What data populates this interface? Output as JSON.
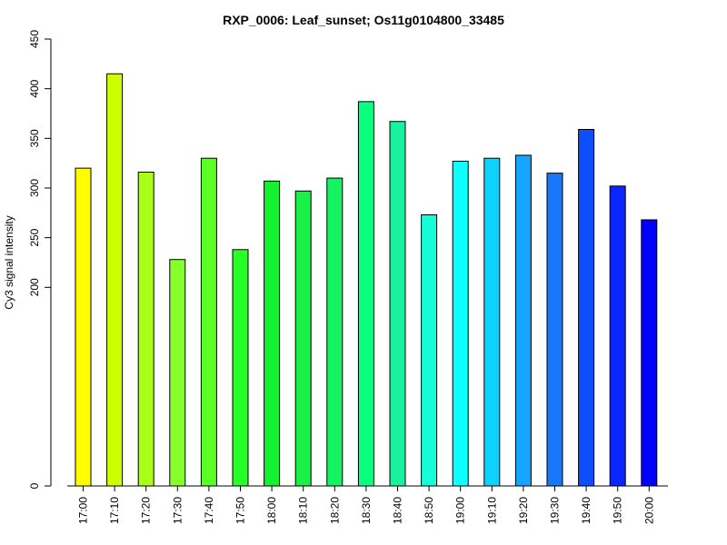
{
  "chart_data": {
    "type": "bar",
    "title": "RXP_0006: Leaf_sunset; Os11g0104800_33485",
    "xlabel": "",
    "ylabel": "Cy3 signal intensity",
    "ylim": [
      0,
      450
    ],
    "yticks": [
      0,
      200,
      250,
      300,
      350,
      400,
      450
    ],
    "grid": false,
    "legend": "none",
    "categories": [
      "17:00",
      "17:10",
      "17:20",
      "17:30",
      "17:40",
      "17:50",
      "18:00",
      "18:10",
      "18:20",
      "18:30",
      "18:40",
      "18:50",
      "19:00",
      "19:10",
      "19:20",
      "19:30",
      "19:40",
      "19:50",
      "20:00"
    ],
    "values": [
      320,
      415,
      316,
      228,
      330,
      238,
      307,
      297,
      310,
      387,
      367,
      273,
      327,
      330,
      333,
      315,
      359,
      302,
      268
    ],
    "colors": [
      "#FFFF00",
      "#CCFF00",
      "#AAFF17",
      "#87FF2D",
      "#5BFF26",
      "#27FF26",
      "#13F131",
      "#1AF147",
      "#15F362",
      "#09FF80",
      "#18F29E",
      "#16FED7",
      "#0DFFFF",
      "#0DD2FF",
      "#16A4FF",
      "#1779FA",
      "#0D4EFF",
      "#0A26FF",
      "#0000FF"
    ]
  }
}
